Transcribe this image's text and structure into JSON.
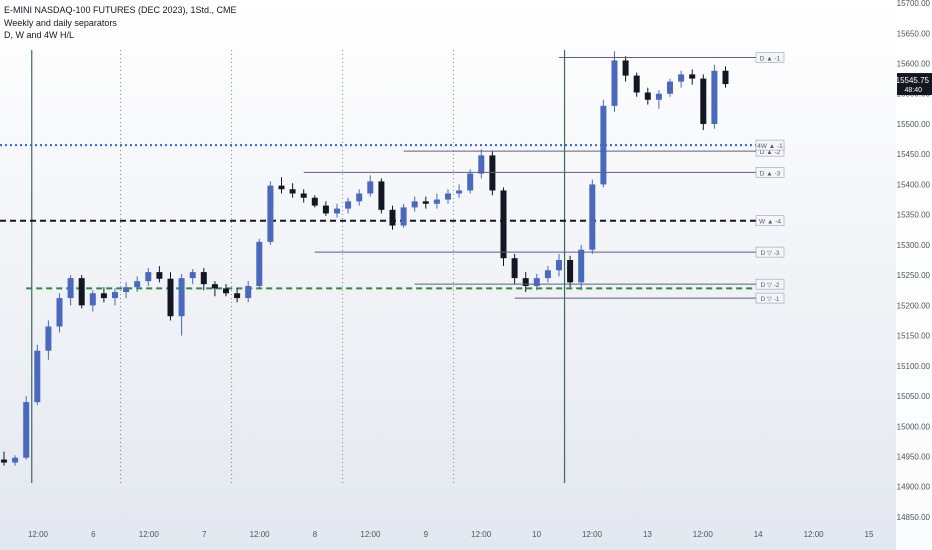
{
  "legend": {
    "title": "E-MINI NASDAQ-100 FUTURES (DEC 2023), 1Std., CME",
    "indicator_1": "Weekly and daily separators",
    "indicator_2": "D, W and 4W H/L"
  },
  "price_badge": {
    "price": "15545.75",
    "countdown": "48:40",
    "color": "#131722"
  },
  "colors": {
    "up": "#4a69bd",
    "down": "#131722",
    "weekly_line": "#3e6b57",
    "daily_line": "#7a8a86",
    "h4w": "#2962ff",
    "hw": "#131722",
    "lw": "#2e8b3d",
    "level_line": "#5b5f8a"
  },
  "chart_data": {
    "type": "candlestick",
    "title": "",
    "xlabel": "",
    "ylabel": "",
    "y_axis": {
      "ticks": [
        14850,
        14900,
        14950,
        15000,
        15050,
        15100,
        15150,
        15200,
        15250,
        15300,
        15350,
        15400,
        15450,
        15500,
        15550,
        15600,
        15650,
        15700
      ],
      "tick_labels": [
        "14850.00",
        "14900.00",
        "14950.00",
        "15000.00",
        "15050.00",
        "15100.00",
        "15150.00",
        "15200.00",
        "15250.00",
        "15300.00",
        "15350.00",
        "15400.00",
        "15450.00",
        "15500.00",
        "15550.00",
        "15600.00",
        "15650.00",
        "15700.00"
      ],
      "ylim": [
        14845,
        15705
      ]
    },
    "x_axis": {
      "tick_labels": [
        "12:00",
        "6",
        "12:00",
        "7",
        "12:00",
        "8",
        "12:00",
        "9",
        "12:00",
        "10",
        "12:00",
        "13",
        "12:00",
        "14",
        "12:00",
        "15"
      ]
    },
    "separators": {
      "weekly_positions": [
        2.5,
        50.5
      ],
      "daily_positions": [
        10.5,
        20.5,
        30.5,
        40.5
      ]
    },
    "horizontal_levels": [
      {
        "label": "4W ▲ -1",
        "price": 15465,
        "style": "dotted",
        "color": "#2962ff"
      },
      {
        "label": "W ▲ -4",
        "price": 15340,
        "style": "dashed",
        "color": "#131722"
      },
      {
        "label": "",
        "price": 15228,
        "style": "dashed",
        "color": "#2e8b3d"
      }
    ],
    "level_markers": [
      {
        "label": "D ▲ -1",
        "price": 15610,
        "from": 50
      },
      {
        "label": "D ▲ -2",
        "price": 15455,
        "from": 36
      },
      {
        "label": "D ▲ -3",
        "price": 15420,
        "from": 27
      },
      {
        "label": "D ▽ -3",
        "price": 15288,
        "from": 28
      },
      {
        "label": "D ▽ -2",
        "price": 15235,
        "from": 37
      },
      {
        "label": "D ▽ -1",
        "price": 15212,
        "from": 46
      }
    ],
    "candles": [
      [
        14945,
        14958,
        14935,
        14940
      ],
      [
        14940,
        14952,
        14935,
        14948
      ],
      [
        14948,
        15050,
        14945,
        15040
      ],
      [
        15040,
        15135,
        15035,
        15125
      ],
      [
        15125,
        15175,
        15110,
        15165
      ],
      [
        15165,
        15220,
        15155,
        15212
      ],
      [
        15212,
        15250,
        15200,
        15245
      ],
      [
        15245,
        15250,
        15195,
        15200
      ],
      [
        15200,
        15225,
        15190,
        15220
      ],
      [
        15220,
        15230,
        15205,
        15212
      ],
      [
        15212,
        15228,
        15200,
        15222
      ],
      [
        15222,
        15238,
        15212,
        15230
      ],
      [
        15230,
        15248,
        15222,
        15240
      ],
      [
        15240,
        15262,
        15232,
        15255
      ],
      [
        15255,
        15265,
        15238,
        15244
      ],
      [
        15244,
        15255,
        15175,
        15182
      ],
      [
        15182,
        15252,
        15150,
        15245
      ],
      [
        15245,
        15260,
        15235,
        15255
      ],
      [
        15255,
        15262,
        15225,
        15235
      ],
      [
        15235,
        15240,
        15215,
        15228
      ],
      [
        15228,
        15235,
        15215,
        15220
      ],
      [
        15220,
        15228,
        15205,
        15212
      ],
      [
        15212,
        15240,
        15205,
        15232
      ],
      [
        15232,
        15310,
        15228,
        15305
      ],
      [
        15305,
        15405,
        15300,
        15398
      ],
      [
        15398,
        15412,
        15385,
        15392
      ],
      [
        15392,
        15402,
        15378,
        15385
      ],
      [
        15385,
        15392,
        15370,
        15378
      ],
      [
        15378,
        15382,
        15362,
        15365
      ],
      [
        15365,
        15372,
        15348,
        15352
      ],
      [
        15352,
        15368,
        15345,
        15360
      ],
      [
        15360,
        15378,
        15352,
        15372
      ],
      [
        15372,
        15392,
        15365,
        15385
      ],
      [
        15385,
        15415,
        15380,
        15405
      ],
      [
        15405,
        15410,
        15352,
        15358
      ],
      [
        15358,
        15365,
        15325,
        15332
      ],
      [
        15332,
        15368,
        15328,
        15362
      ],
      [
        15362,
        15380,
        15355,
        15372
      ],
      [
        15372,
        15380,
        15360,
        15368
      ],
      [
        15368,
        15385,
        15360,
        15375
      ],
      [
        15375,
        15392,
        15368,
        15385
      ],
      [
        15385,
        15400,
        15378,
        15390
      ],
      [
        15390,
        15425,
        15385,
        15418
      ],
      [
        15418,
        15458,
        15410,
        15448
      ],
      [
        15448,
        15455,
        15382,
        15390
      ],
      [
        15390,
        15395,
        15265,
        15278
      ],
      [
        15278,
        15285,
        15235,
        15245
      ],
      [
        15245,
        15255,
        15222,
        15232
      ],
      [
        15232,
        15252,
        15225,
        15245
      ],
      [
        15245,
        15265,
        15238,
        15258
      ],
      [
        15258,
        15285,
        15248,
        15275
      ],
      [
        15275,
        15282,
        15230,
        15238
      ],
      [
        15238,
        15300,
        15225,
        15292
      ],
      [
        15292,
        15408,
        15285,
        15400
      ],
      [
        15400,
        15540,
        15395,
        15530
      ],
      [
        15530,
        15620,
        15520,
        15605
      ],
      [
        15605,
        15612,
        15570,
        15580
      ],
      [
        15580,
        15585,
        15545,
        15552
      ],
      [
        15552,
        15560,
        15532,
        15540
      ],
      [
        15540,
        15556,
        15525,
        15550
      ],
      [
        15550,
        15575,
        15545,
        15570
      ],
      [
        15570,
        15588,
        15560,
        15582
      ],
      [
        15582,
        15590,
        15565,
        15575
      ],
      [
        15575,
        15582,
        15490,
        15500
      ],
      [
        15500,
        15598,
        15492,
        15588
      ],
      [
        15588,
        15595,
        15560,
        15566
      ]
    ]
  }
}
